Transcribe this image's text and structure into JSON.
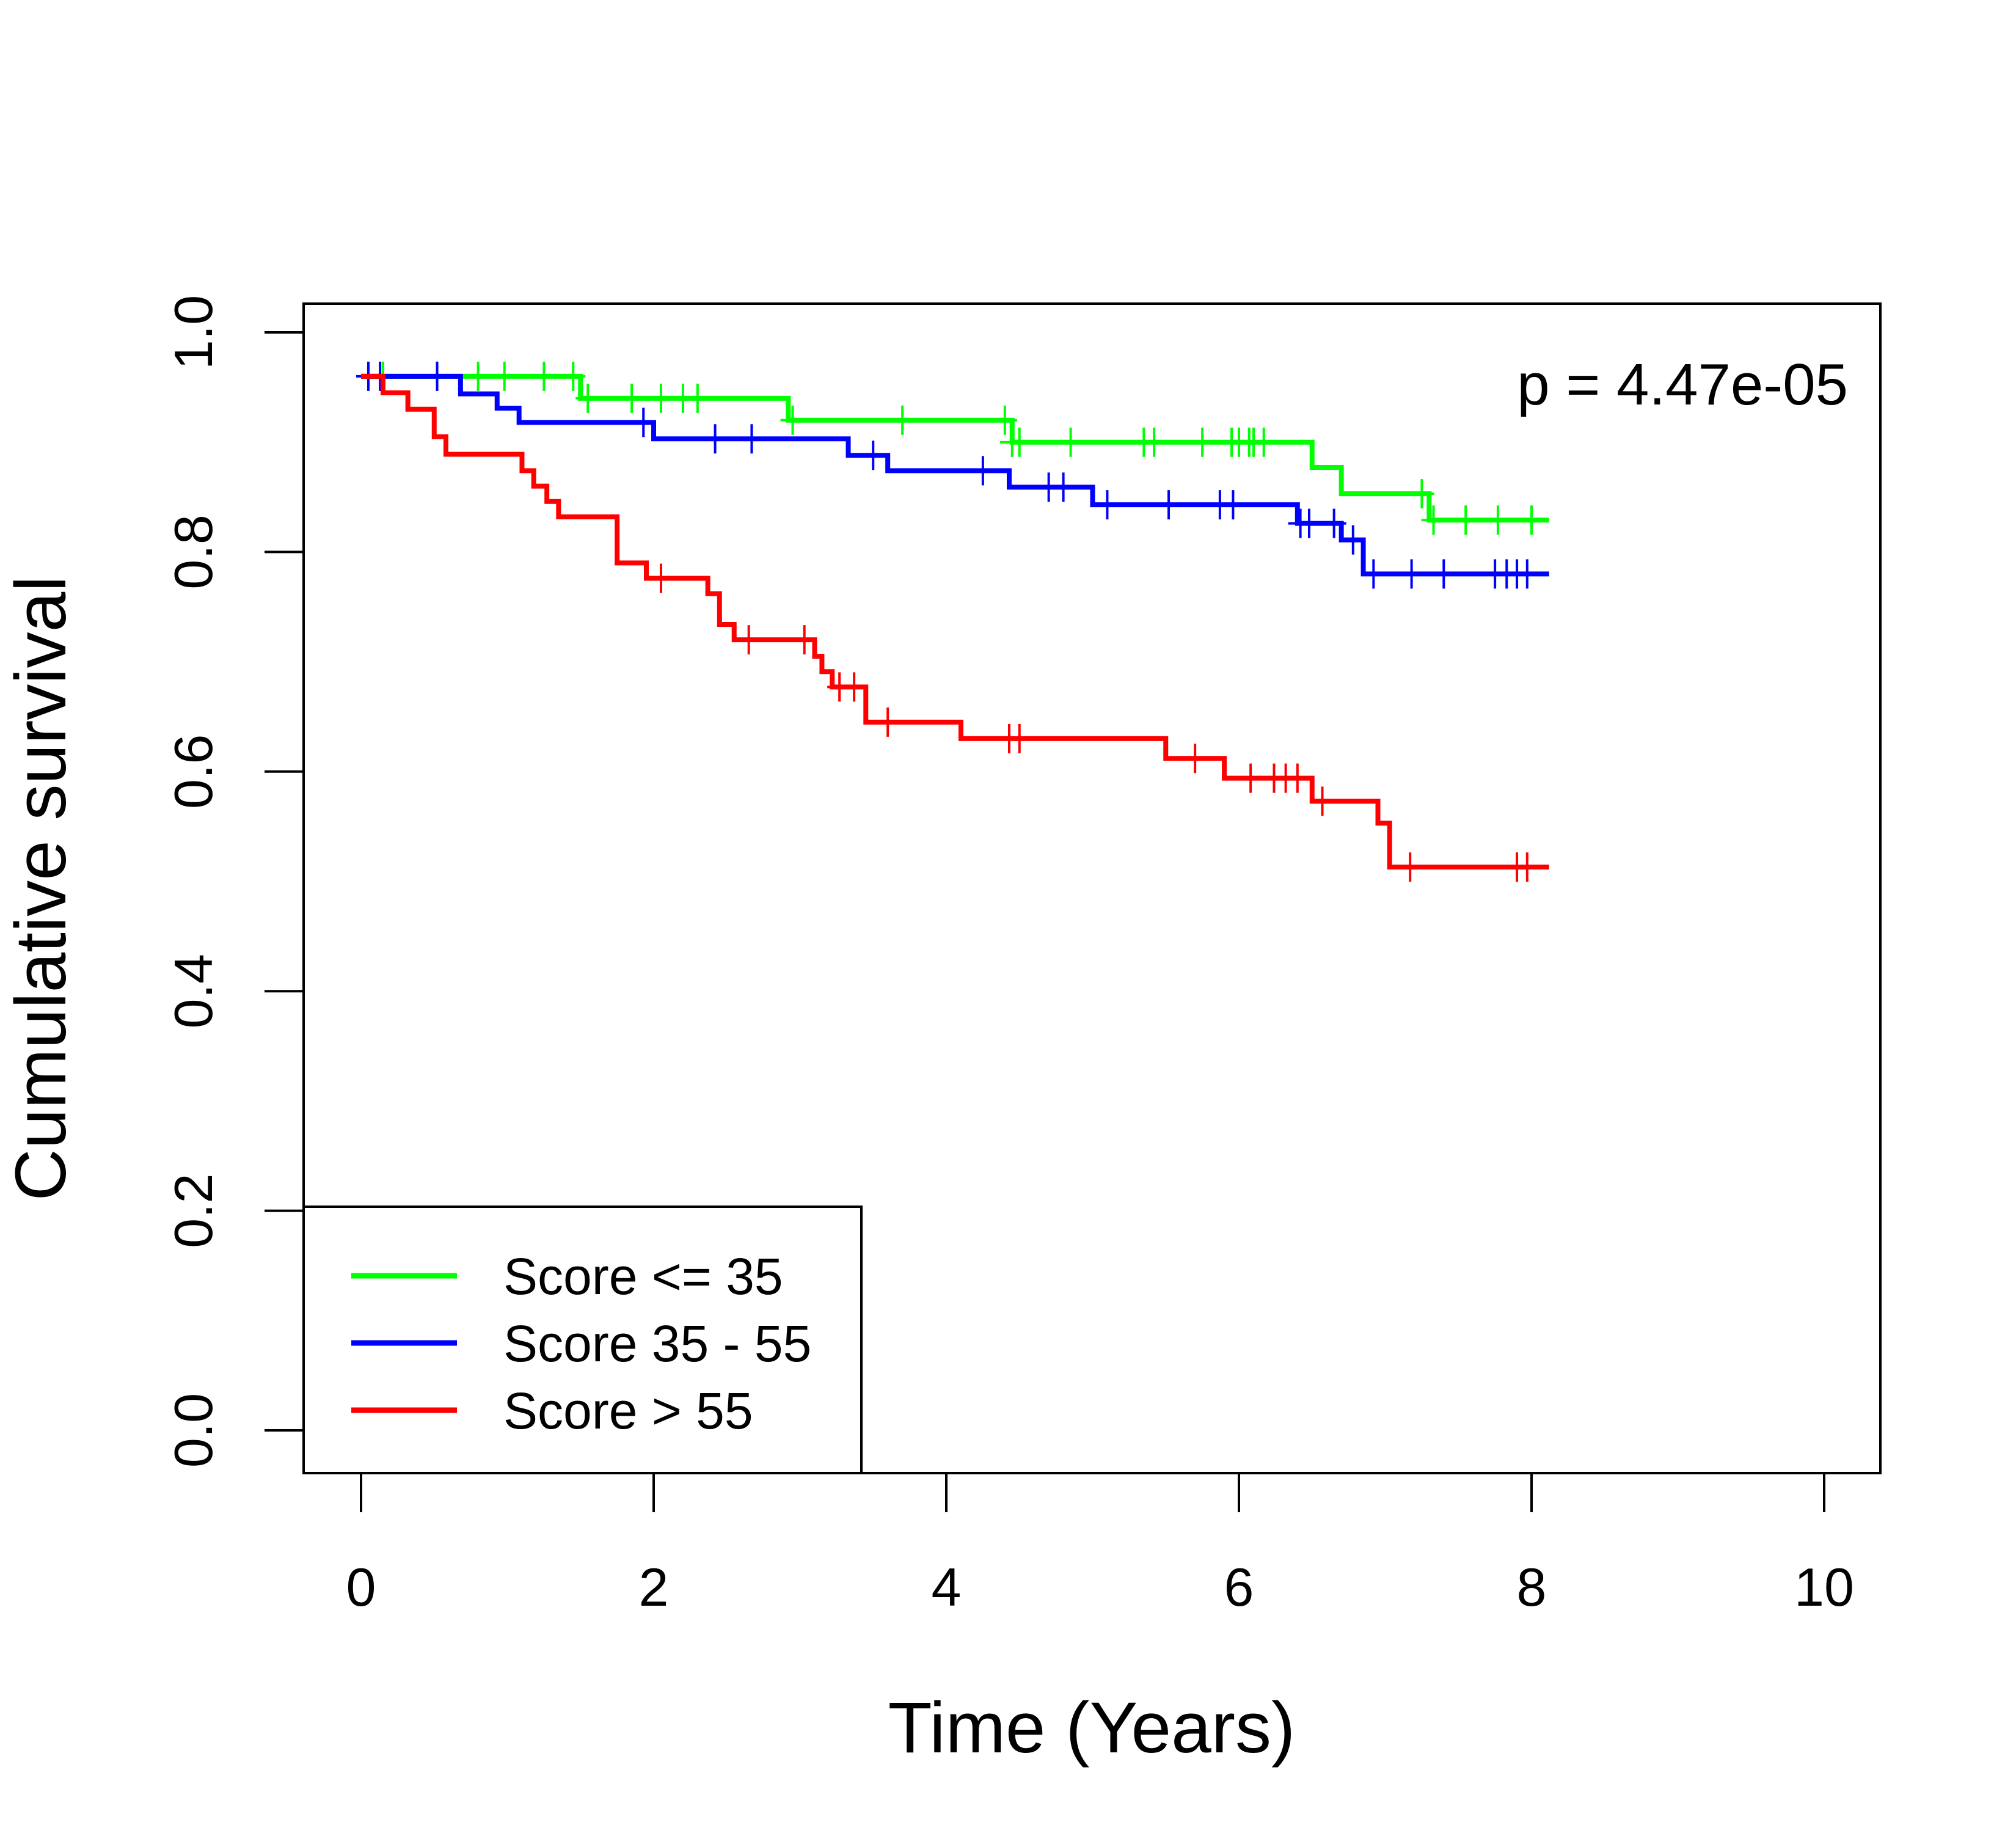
{
  "chart_data": {
    "type": "line",
    "subtype": "kaplan-meier-step",
    "title": "",
    "xlabel": "Time (Years)",
    "ylabel": "Cumulative survival",
    "xlim": [
      0,
      10
    ],
    "ylim": [
      0,
      1
    ],
    "x_ticks": [
      "0",
      "2",
      "4",
      "6",
      "8",
      "10"
    ],
    "y_ticks": [
      "0.0",
      "0.2",
      "0.4",
      "0.6",
      "0.8",
      "1.0"
    ],
    "grid": false,
    "legend_position": "bottom-left",
    "annotation": "p = 4.47e-05",
    "series": [
      {
        "name": "Score <= 35",
        "color": "#00ff00",
        "steps": [
          [
            0,
            0.96
          ],
          [
            0.1,
            0.96
          ],
          [
            1.5,
            0.94
          ],
          [
            2.92,
            0.92
          ],
          [
            4.45,
            0.9
          ],
          [
            6.5,
            0.877
          ],
          [
            6.7,
            0.853
          ],
          [
            7.3,
            0.829
          ],
          [
            8.12,
            0.829
          ]
        ],
        "censor_x": [
          0.15,
          0.8,
          0.98,
          1.25,
          1.45,
          1.55,
          1.85,
          2.05,
          2.2,
          2.3,
          2.95,
          3.7,
          4.4,
          4.45,
          4.5,
          4.85,
          5.35,
          5.42,
          5.75,
          5.95,
          6.0,
          6.07,
          6.1,
          6.17,
          7.25,
          7.33,
          7.55,
          7.77,
          8.0
        ]
      },
      {
        "name": "Score 35 - 55",
        "color": "#0000ff",
        "steps": [
          [
            0,
            0.96
          ],
          [
            0.68,
            0.944
          ],
          [
            0.93,
            0.931
          ],
          [
            1.08,
            0.918
          ],
          [
            2.0,
            0.903
          ],
          [
            3.33,
            0.888
          ],
          [
            3.6,
            0.874
          ],
          [
            4.43,
            0.859
          ],
          [
            5.0,
            0.843
          ],
          [
            6.4,
            0.826
          ],
          [
            6.7,
            0.811
          ],
          [
            6.85,
            0.78
          ],
          [
            8.12,
            0.78
          ]
        ],
        "censor_x": [
          0.05,
          0.13,
          0.52,
          1.93,
          2.42,
          2.67,
          3.5,
          4.25,
          4.7,
          4.8,
          5.1,
          5.52,
          5.87,
          5.96,
          6.42,
          6.48,
          6.65,
          6.78,
          6.92,
          7.18,
          7.4,
          7.75,
          7.83,
          7.9,
          7.97
        ]
      },
      {
        "name": "Score > 55",
        "color": "#ff0000",
        "steps": [
          [
            0,
            0.96
          ],
          [
            0.15,
            0.945
          ],
          [
            0.32,
            0.93
          ],
          [
            0.5,
            0.905
          ],
          [
            0.58,
            0.889
          ],
          [
            1.1,
            0.874
          ],
          [
            1.18,
            0.86
          ],
          [
            1.27,
            0.846
          ],
          [
            1.35,
            0.832
          ],
          [
            1.75,
            0.79
          ],
          [
            1.95,
            0.776
          ],
          [
            2.37,
            0.762
          ],
          [
            2.45,
            0.734
          ],
          [
            2.55,
            0.72
          ],
          [
            3.1,
            0.705
          ],
          [
            3.15,
            0.691
          ],
          [
            3.22,
            0.677
          ],
          [
            3.45,
            0.645
          ],
          [
            4.1,
            0.63
          ],
          [
            5.5,
            0.612
          ],
          [
            5.9,
            0.594
          ],
          [
            6.5,
            0.573
          ],
          [
            6.95,
            0.553
          ],
          [
            7.03,
            0.513
          ],
          [
            8.12,
            0.513
          ]
        ],
        "censor_x": [
          2.05,
          2.65,
          3.03,
          3.27,
          3.37,
          3.6,
          4.43,
          4.5,
          5.7,
          6.08,
          6.24,
          6.32,
          6.4,
          6.57,
          7.17,
          7.9,
          7.97
        ]
      }
    ]
  }
}
